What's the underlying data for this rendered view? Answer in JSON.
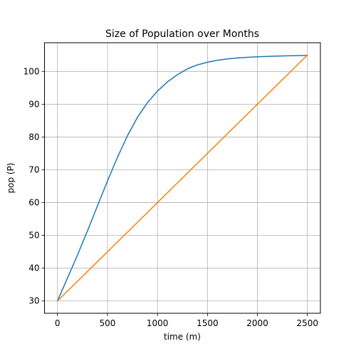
{
  "chart_data": {
    "type": "line",
    "title": "Size of Population over Months",
    "xlabel": "time (m)",
    "ylabel": "pop (P)",
    "xlim": [
      -130,
      2630
    ],
    "ylim": [
      26.25,
      108.75
    ],
    "xticks": [
      0,
      500,
      1000,
      1500,
      2000,
      2500
    ],
    "yticks": [
      30,
      40,
      50,
      60,
      70,
      80,
      90,
      100
    ],
    "grid": true,
    "series": [
      {
        "color": "#1f77b4",
        "x": [
          0,
          100,
          200,
          300,
          400,
          500,
          600,
          700,
          800,
          900,
          1000,
          1100,
          1200,
          1300,
          1400,
          1500,
          1600,
          1700,
          1800,
          1900,
          2000,
          2100,
          2200,
          2300,
          2400,
          2500
        ],
        "y": [
          30.0,
          37.0,
          44.0,
          51.4,
          59.0,
          66.6,
          73.8,
          80.4,
          86.0,
          90.5,
          94.0,
          96.8,
          99.0,
          100.8,
          102.0,
          102.8,
          103.4,
          103.8,
          104.1,
          104.3,
          104.45,
          104.58,
          104.68,
          104.76,
          104.82,
          104.9
        ]
      },
      {
        "color": "#ff7f0e",
        "x": [
          0,
          2500
        ],
        "y": [
          30,
          105
        ]
      }
    ]
  }
}
